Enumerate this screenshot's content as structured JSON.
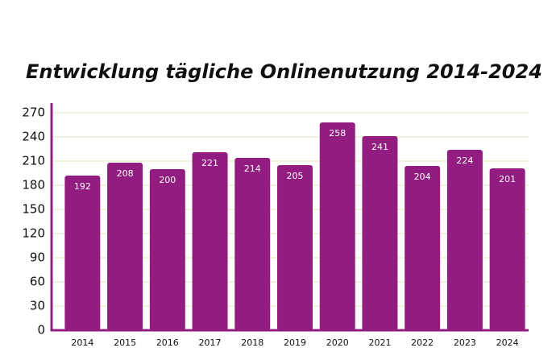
{
  "chart_data": {
    "type": "bar",
    "title": "Entwicklung tägliche Onlinenutzung 2014-2024",
    "categories": [
      "2014",
      "2015",
      "2016",
      "2017",
      "2018",
      "2019",
      "2020",
      "2021",
      "2022",
      "2023",
      "2024"
    ],
    "values": [
      192,
      208,
      200,
      221,
      214,
      205,
      258,
      241,
      204,
      224,
      201
    ],
    "color": "#921c80",
    "ylim": [
      0,
      270
    ],
    "yticks": [
      0,
      30,
      60,
      90,
      120,
      150,
      180,
      210,
      240,
      270
    ],
    "grid": true
  }
}
